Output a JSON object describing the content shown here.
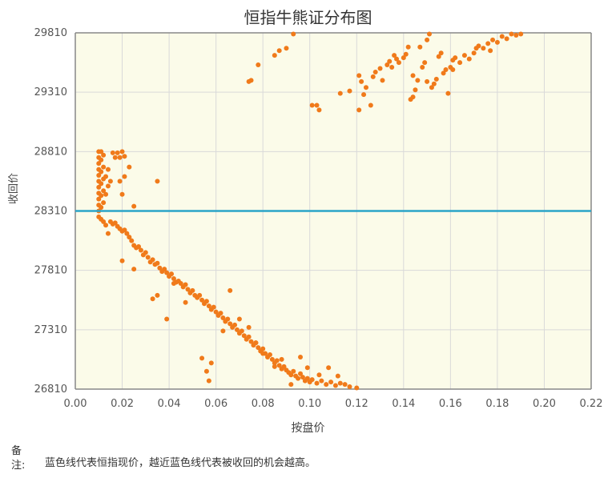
{
  "chart_data": {
    "type": "scatter",
    "title": "恒指牛熊证分布图",
    "xlabel": "按盘价",
    "ylabel": "收回价",
    "xlim": [
      0.0,
      0.22
    ],
    "ylim": [
      26810,
      29810
    ],
    "xticks": [
      "0.00",
      "0.02",
      "0.04",
      "0.06",
      "0.08",
      "0.10",
      "0.12",
      "0.14",
      "0.16",
      "0.18",
      "0.20",
      "0.22"
    ],
    "yticks": [
      "26810",
      "27310",
      "27810",
      "28310",
      "28810",
      "29310",
      "29810"
    ],
    "reference_line": 28310,
    "grid": true,
    "colors": {
      "points": "#f07a1a",
      "line": "#2aa4c8",
      "plot_bg": "#fbfbe9",
      "grid": "#d9d9d9"
    },
    "bear_points": [
      [
        0.01,
        28310
      ],
      [
        0.01,
        28360
      ],
      [
        0.01,
        28410
      ],
      [
        0.01,
        28460
      ],
      [
        0.01,
        28510
      ],
      [
        0.01,
        28560
      ],
      [
        0.01,
        28610
      ],
      [
        0.01,
        28660
      ],
      [
        0.01,
        28710
      ],
      [
        0.01,
        28760
      ],
      [
        0.01,
        28810
      ],
      [
        0.011,
        28340
      ],
      [
        0.011,
        28440
      ],
      [
        0.011,
        28540
      ],
      [
        0.011,
        28640
      ],
      [
        0.011,
        28740
      ],
      [
        0.011,
        28810
      ],
      [
        0.012,
        28380
      ],
      [
        0.012,
        28480
      ],
      [
        0.012,
        28580
      ],
      [
        0.012,
        28680
      ],
      [
        0.012,
        28780
      ],
      [
        0.013,
        28450
      ],
      [
        0.013,
        28600
      ],
      [
        0.014,
        28520
      ],
      [
        0.014,
        28660
      ],
      [
        0.015,
        28560
      ],
      [
        0.016,
        28800
      ],
      [
        0.017,
        28760
      ],
      [
        0.018,
        28800
      ],
      [
        0.019,
        28760
      ],
      [
        0.02,
        28810
      ],
      [
        0.021,
        28770
      ],
      [
        0.019,
        28560
      ],
      [
        0.02,
        28450
      ],
      [
        0.021,
        28600
      ],
      [
        0.023,
        28680
      ],
      [
        0.025,
        28350
      ],
      [
        0.035,
        28560
      ],
      [
        0.074,
        29400
      ],
      [
        0.075,
        29410
      ],
      [
        0.078,
        29540
      ],
      [
        0.085,
        29620
      ],
      [
        0.087,
        29660
      ],
      [
        0.09,
        29680
      ],
      [
        0.093,
        29800
      ],
      [
        0.101,
        29200
      ],
      [
        0.103,
        29200
      ],
      [
        0.104,
        29160
      ],
      [
        0.113,
        29300
      ],
      [
        0.117,
        29320
      ],
      [
        0.121,
        29450
      ],
      [
        0.121,
        29160
      ],
      [
        0.122,
        29400
      ],
      [
        0.123,
        29290
      ],
      [
        0.124,
        29350
      ],
      [
        0.126,
        29200
      ],
      [
        0.127,
        29440
      ],
      [
        0.128,
        29480
      ],
      [
        0.13,
        29510
      ],
      [
        0.131,
        29410
      ],
      [
        0.133,
        29540
      ],
      [
        0.134,
        29570
      ],
      [
        0.135,
        29520
      ],
      [
        0.137,
        29590
      ],
      [
        0.138,
        29560
      ],
      [
        0.14,
        29600
      ],
      [
        0.141,
        29630
      ],
      [
        0.142,
        29690
      ],
      [
        0.143,
        29250
      ],
      [
        0.144,
        29270
      ],
      [
        0.145,
        29330
      ],
      [
        0.146,
        29410
      ],
      [
        0.147,
        29690
      ],
      [
        0.148,
        29520
      ],
      [
        0.149,
        29560
      ],
      [
        0.15,
        29750
      ],
      [
        0.151,
        29800
      ],
      [
        0.152,
        29350
      ],
      [
        0.153,
        29380
      ],
      [
        0.154,
        29420
      ],
      [
        0.155,
        29610
      ],
      [
        0.156,
        29640
      ],
      [
        0.157,
        29470
      ],
      [
        0.158,
        29500
      ],
      [
        0.159,
        29300
      ],
      [
        0.16,
        29520
      ],
      [
        0.161,
        29580
      ],
      [
        0.162,
        29600
      ],
      [
        0.164,
        29560
      ],
      [
        0.166,
        29620
      ],
      [
        0.168,
        29590
      ],
      [
        0.17,
        29640
      ],
      [
        0.172,
        29700
      ],
      [
        0.174,
        29680
      ],
      [
        0.176,
        29720
      ],
      [
        0.178,
        29750
      ],
      [
        0.18,
        29730
      ],
      [
        0.182,
        29780
      ],
      [
        0.184,
        29760
      ],
      [
        0.186,
        29800
      ],
      [
        0.188,
        29790
      ],
      [
        0.19,
        29800
      ],
      [
        0.136,
        29620
      ],
      [
        0.144,
        29450
      ],
      [
        0.15,
        29400
      ],
      [
        0.161,
        29500
      ],
      [
        0.171,
        29680
      ],
      [
        0.177,
        29660
      ]
    ],
    "bull_points": [
      [
        0.01,
        28260
      ],
      [
        0.011,
        28240
      ],
      [
        0.012,
        28220
      ],
      [
        0.013,
        28190
      ],
      [
        0.014,
        28120
      ],
      [
        0.015,
        28220
      ],
      [
        0.016,
        28200
      ],
      [
        0.017,
        28210
      ],
      [
        0.018,
        28180
      ],
      [
        0.019,
        28160
      ],
      [
        0.02,
        28140
      ],
      [
        0.021,
        28150
      ],
      [
        0.022,
        28120
      ],
      [
        0.023,
        28090
      ],
      [
        0.024,
        28060
      ],
      [
        0.025,
        28020
      ],
      [
        0.026,
        28000
      ],
      [
        0.027,
        28010
      ],
      [
        0.028,
        27980
      ],
      [
        0.029,
        27940
      ],
      [
        0.03,
        27960
      ],
      [
        0.031,
        27920
      ],
      [
        0.032,
        27880
      ],
      [
        0.033,
        27900
      ],
      [
        0.034,
        27860
      ],
      [
        0.035,
        27870
      ],
      [
        0.036,
        27830
      ],
      [
        0.037,
        27800
      ],
      [
        0.038,
        27820
      ],
      [
        0.039,
        27790
      ],
      [
        0.04,
        27760
      ],
      [
        0.041,
        27780
      ],
      [
        0.042,
        27740
      ],
      [
        0.043,
        27710
      ],
      [
        0.044,
        27720
      ],
      [
        0.045,
        27700
      ],
      [
        0.046,
        27670
      ],
      [
        0.047,
        27690
      ],
      [
        0.048,
        27650
      ],
      [
        0.049,
        27620
      ],
      [
        0.05,
        27640
      ],
      [
        0.051,
        27600
      ],
      [
        0.052,
        27580
      ],
      [
        0.053,
        27600
      ],
      [
        0.054,
        27560
      ],
      [
        0.055,
        27530
      ],
      [
        0.056,
        27550
      ],
      [
        0.057,
        27510
      ],
      [
        0.058,
        27480
      ],
      [
        0.059,
        27500
      ],
      [
        0.06,
        27460
      ],
      [
        0.061,
        27430
      ],
      [
        0.062,
        27450
      ],
      [
        0.063,
        27410
      ],
      [
        0.064,
        27380
      ],
      [
        0.065,
        27400
      ],
      [
        0.066,
        27360
      ],
      [
        0.067,
        27330
      ],
      [
        0.068,
        27350
      ],
      [
        0.069,
        27310
      ],
      [
        0.07,
        27280
      ],
      [
        0.071,
        27300
      ],
      [
        0.072,
        27260
      ],
      [
        0.073,
        27230
      ],
      [
        0.074,
        27250
      ],
      [
        0.075,
        27210
      ],
      [
        0.076,
        27180
      ],
      [
        0.077,
        27200
      ],
      [
        0.078,
        27160
      ],
      [
        0.079,
        27130
      ],
      [
        0.08,
        27150
      ],
      [
        0.081,
        27110
      ],
      [
        0.082,
        27080
      ],
      [
        0.083,
        27100
      ],
      [
        0.084,
        27060
      ],
      [
        0.085,
        27030
      ],
      [
        0.086,
        27050
      ],
      [
        0.087,
        27010
      ],
      [
        0.088,
        26980
      ],
      [
        0.089,
        27000
      ],
      [
        0.09,
        26970
      ],
      [
        0.091,
        26950
      ],
      [
        0.092,
        26930
      ],
      [
        0.093,
        26960
      ],
      [
        0.094,
        26920
      ],
      [
        0.095,
        26900
      ],
      [
        0.096,
        26940
      ],
      [
        0.097,
        26910
      ],
      [
        0.098,
        26880
      ],
      [
        0.099,
        26900
      ],
      [
        0.1,
        26870
      ],
      [
        0.101,
        26890
      ],
      [
        0.103,
        26860
      ],
      [
        0.105,
        26880
      ],
      [
        0.107,
        26850
      ],
      [
        0.109,
        26870
      ],
      [
        0.111,
        26840
      ],
      [
        0.113,
        26860
      ],
      [
        0.115,
        26850
      ],
      [
        0.117,
        26830
      ],
      [
        0.12,
        26820
      ],
      [
        0.02,
        27890
      ],
      [
        0.025,
        27820
      ],
      [
        0.033,
        27570
      ],
      [
        0.035,
        27600
      ],
      [
        0.039,
        27400
      ],
      [
        0.042,
        27700
      ],
      [
        0.047,
        27540
      ],
      [
        0.054,
        27070
      ],
      [
        0.056,
        26960
      ],
      [
        0.057,
        26880
      ],
      [
        0.058,
        27030
      ],
      [
        0.063,
        27300
      ],
      [
        0.066,
        27640
      ],
      [
        0.07,
        27400
      ],
      [
        0.074,
        27330
      ],
      [
        0.077,
        27200
      ],
      [
        0.08,
        27110
      ],
      [
        0.085,
        27000
      ],
      [
        0.088,
        27060
      ],
      [
        0.092,
        26850
      ],
      [
        0.096,
        27080
      ],
      [
        0.099,
        26990
      ],
      [
        0.104,
        26930
      ],
      [
        0.108,
        26990
      ],
      [
        0.112,
        26920
      ]
    ]
  },
  "note": {
    "label": "备注:",
    "text": "蓝色线代表恒指现价，越近蓝色线代表被收回的机会越高。"
  }
}
